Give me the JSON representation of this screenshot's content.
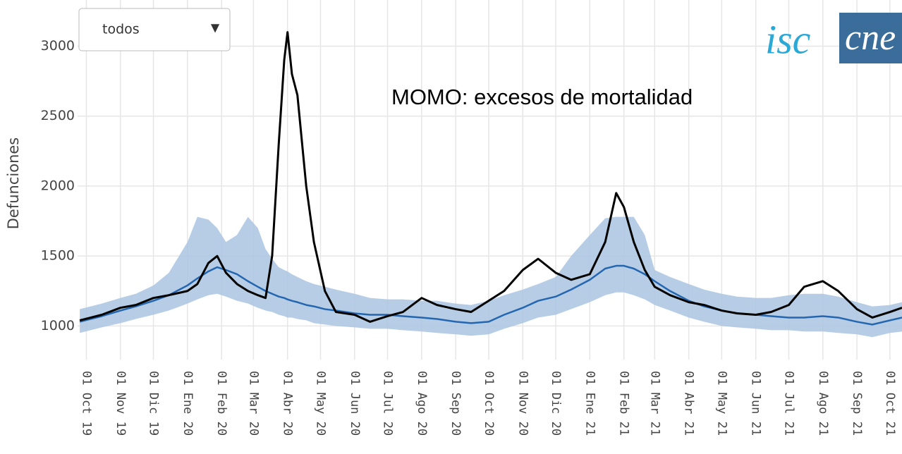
{
  "chart_data": {
    "type": "line",
    "title": "MOMO: excesos de mortalidad",
    "ylabel": "Defunciones",
    "dropdown": {
      "value": "todos",
      "arrow": "▼"
    },
    "logo": {
      "left": "isc",
      "right": "cne"
    },
    "x": [
      "2019-09-25",
      "2019-10-15",
      "2019-11-01",
      "2019-11-15",
      "2019-12-01",
      "2019-12-15",
      "2020-01-01",
      "2020-01-10",
      "2020-01-20",
      "2020-01-28",
      "2020-02-05",
      "2020-02-15",
      "2020-02-25",
      "2020-03-05",
      "2020-03-12",
      "2020-03-18",
      "2020-03-24",
      "2020-03-29",
      "2020-04-01",
      "2020-04-05",
      "2020-04-10",
      "2020-04-18",
      "2020-04-25",
      "2020-05-05",
      "2020-05-15",
      "2020-06-01",
      "2020-06-15",
      "2020-07-01",
      "2020-07-15",
      "2020-08-01",
      "2020-08-15",
      "2020-09-01",
      "2020-09-15",
      "2020-10-01",
      "2020-10-15",
      "2020-11-01",
      "2020-11-15",
      "2020-12-01",
      "2020-12-15",
      "2021-01-01",
      "2021-01-15",
      "2021-01-25",
      "2021-02-01",
      "2021-02-10",
      "2021-02-20",
      "2021-03-01",
      "2021-03-15",
      "2021-04-01",
      "2021-04-15",
      "2021-05-01",
      "2021-05-15",
      "2021-06-01",
      "2021-06-15",
      "2021-07-01",
      "2021-07-15",
      "2021-08-01",
      "2021-08-15",
      "2021-09-01",
      "2021-09-15",
      "2021-10-01",
      "2021-10-12"
    ],
    "band": {
      "color": "#a9c4e0",
      "lower": [
        950,
        990,
        1020,
        1050,
        1080,
        1110,
        1160,
        1190,
        1220,
        1230,
        1210,
        1180,
        1160,
        1130,
        1110,
        1100,
        1080,
        1070,
        1060,
        1060,
        1050,
        1040,
        1020,
        1010,
        1000,
        990,
        980,
        980,
        970,
        960,
        950,
        940,
        930,
        940,
        980,
        1020,
        1060,
        1080,
        1120,
        1170,
        1220,
        1240,
        1240,
        1220,
        1190,
        1150,
        1110,
        1060,
        1030,
        1000,
        990,
        980,
        970,
        970,
        960,
        960,
        950,
        940,
        920,
        950,
        960
      ],
      "upper": [
        1120,
        1160,
        1200,
        1230,
        1290,
        1380,
        1600,
        1780,
        1760,
        1700,
        1600,
        1650,
        1780,
        1700,
        1550,
        1480,
        1420,
        1400,
        1390,
        1370,
        1350,
        1320,
        1300,
        1280,
        1260,
        1230,
        1200,
        1190,
        1190,
        1180,
        1180,
        1160,
        1150,
        1180,
        1220,
        1260,
        1300,
        1350,
        1500,
        1650,
        1770,
        1780,
        1780,
        1780,
        1650,
        1400,
        1350,
        1300,
        1260,
        1230,
        1210,
        1200,
        1200,
        1220,
        1230,
        1230,
        1210,
        1170,
        1140,
        1150,
        1170
      ]
    },
    "series": [
      {
        "color": "#000000",
        "values": [
          1040,
          1080,
          1130,
          1150,
          1200,
          1220,
          1250,
          1300,
          1450,
          1500,
          1380,
          1300,
          1250,
          1220,
          1200,
          1500,
          2300,
          2900,
          3100,
          2800,
          2650,
          2000,
          1600,
          1250,
          1100,
          1080,
          1030,
          1070,
          1100,
          1200,
          1150,
          1120,
          1100,
          1180,
          1250,
          1400,
          1480,
          1380,
          1330,
          1370,
          1600,
          1950,
          1850,
          1600,
          1400,
          1280,
          1220,
          1170,
          1150,
          1110,
          1090,
          1080,
          1100,
          1150,
          1280,
          1320,
          1250,
          1120,
          1060,
          1100,
          1130
        ]
      },
      {
        "color": "#2466b0",
        "values": [
          1030,
          1070,
          1110,
          1140,
          1180,
          1220,
          1290,
          1340,
          1390,
          1420,
          1400,
          1370,
          1320,
          1280,
          1250,
          1230,
          1210,
          1200,
          1190,
          1180,
          1170,
          1150,
          1140,
          1120,
          1110,
          1090,
          1080,
          1080,
          1070,
          1060,
          1050,
          1030,
          1020,
          1030,
          1080,
          1130,
          1180,
          1210,
          1260,
          1330,
          1410,
          1430,
          1430,
          1410,
          1370,
          1320,
          1250,
          1180,
          1140,
          1110,
          1090,
          1080,
          1070,
          1060,
          1060,
          1070,
          1060,
          1030,
          1010,
          1040,
          1060
        ]
      }
    ],
    "xlim": [
      "2019-09-23",
      "2021-10-12"
    ],
    "xticks": [
      {
        "value": "2019-10-01",
        "label": "01 Oct 19"
      },
      {
        "value": "2019-11-01",
        "label": "01 Nov 19"
      },
      {
        "value": "2019-12-01",
        "label": "01 Dic 19"
      },
      {
        "value": "2020-01-01",
        "label": "01 Ene 20"
      },
      {
        "value": "2020-02-01",
        "label": "01 Feb 20"
      },
      {
        "value": "2020-03-01",
        "label": "01 Mar 20"
      },
      {
        "value": "2020-04-01",
        "label": "01 Abr 20"
      },
      {
        "value": "2020-05-01",
        "label": "01 May 20"
      },
      {
        "value": "2020-06-01",
        "label": "01 Jun 20"
      },
      {
        "value": "2020-07-01",
        "label": "01 Jul 20"
      },
      {
        "value": "2020-08-01",
        "label": "01 Ago 20"
      },
      {
        "value": "2020-09-01",
        "label": "01 Sep 20"
      },
      {
        "value": "2020-10-01",
        "label": "01 Oct 20"
      },
      {
        "value": "2020-11-01",
        "label": "01 Nov 20"
      },
      {
        "value": "2020-12-01",
        "label": "01 Dic 20"
      },
      {
        "value": "2021-01-01",
        "label": "01 Ene 21"
      },
      {
        "value": "2021-02-01",
        "label": "01 Feb 21"
      },
      {
        "value": "2021-03-01",
        "label": "01 Mar 21"
      },
      {
        "value": "2021-04-01",
        "label": "01 Abr 21"
      },
      {
        "value": "2021-05-01",
        "label": "01 May 21"
      },
      {
        "value": "2021-06-01",
        "label": "01 Jun 21"
      },
      {
        "value": "2021-07-01",
        "label": "01 Jul 21"
      },
      {
        "value": "2021-08-01",
        "label": "01 Ago 21"
      },
      {
        "value": "2021-09-01",
        "label": "01 Sep 21"
      },
      {
        "value": "2021-10-01",
        "label": "01 Oct 21"
      }
    ],
    "ylim": [
      760,
      3330
    ],
    "yticks": [
      1000,
      1500,
      2000,
      2500,
      3000
    ],
    "grid": true
  }
}
